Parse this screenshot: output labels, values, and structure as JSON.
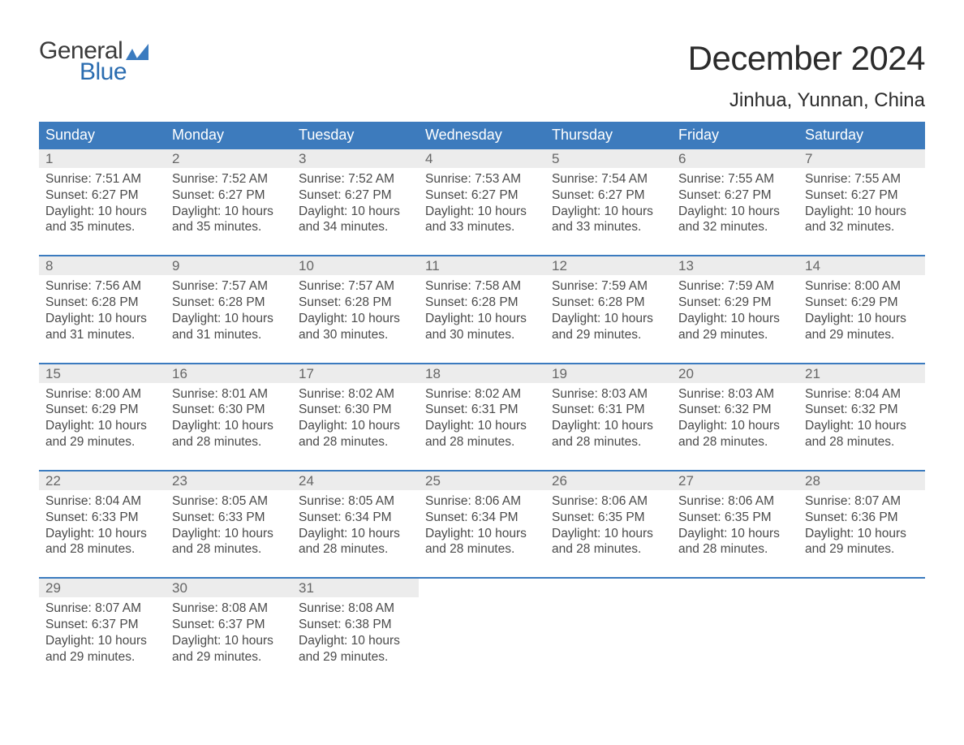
{
  "brand": {
    "line1": "General",
    "line2": "Blue",
    "flag_color": "#3b7bbf"
  },
  "title": "December 2024",
  "location": "Jinhua, Yunnan, China",
  "colors": {
    "header_bg": "#3d7bbd",
    "row_divider": "#3b7bbf",
    "daynum_bg": "#ececec",
    "text": "#333333",
    "background": "#ffffff"
  },
  "typography": {
    "title_fontsize": 42,
    "location_fontsize": 24,
    "dow_fontsize": 18,
    "daynum_fontsize": 17,
    "body_fontsize": 15.5
  },
  "days_of_week": [
    "Sunday",
    "Monday",
    "Tuesday",
    "Wednesday",
    "Thursday",
    "Friday",
    "Saturday"
  ],
  "labels": {
    "sunrise": "Sunrise",
    "sunset": "Sunset",
    "daylight": "Daylight"
  },
  "calendar": {
    "start_weekday_index": 0,
    "days": [
      {
        "n": 1,
        "sunrise": "7:51 AM",
        "sunset": "6:27 PM",
        "daylight": "10 hours and 35 minutes."
      },
      {
        "n": 2,
        "sunrise": "7:52 AM",
        "sunset": "6:27 PM",
        "daylight": "10 hours and 35 minutes."
      },
      {
        "n": 3,
        "sunrise": "7:52 AM",
        "sunset": "6:27 PM",
        "daylight": "10 hours and 34 minutes."
      },
      {
        "n": 4,
        "sunrise": "7:53 AM",
        "sunset": "6:27 PM",
        "daylight": "10 hours and 33 minutes."
      },
      {
        "n": 5,
        "sunrise": "7:54 AM",
        "sunset": "6:27 PM",
        "daylight": "10 hours and 33 minutes."
      },
      {
        "n": 6,
        "sunrise": "7:55 AM",
        "sunset": "6:27 PM",
        "daylight": "10 hours and 32 minutes."
      },
      {
        "n": 7,
        "sunrise": "7:55 AM",
        "sunset": "6:27 PM",
        "daylight": "10 hours and 32 minutes."
      },
      {
        "n": 8,
        "sunrise": "7:56 AM",
        "sunset": "6:28 PM",
        "daylight": "10 hours and 31 minutes."
      },
      {
        "n": 9,
        "sunrise": "7:57 AM",
        "sunset": "6:28 PM",
        "daylight": "10 hours and 31 minutes."
      },
      {
        "n": 10,
        "sunrise": "7:57 AM",
        "sunset": "6:28 PM",
        "daylight": "10 hours and 30 minutes."
      },
      {
        "n": 11,
        "sunrise": "7:58 AM",
        "sunset": "6:28 PM",
        "daylight": "10 hours and 30 minutes."
      },
      {
        "n": 12,
        "sunrise": "7:59 AM",
        "sunset": "6:28 PM",
        "daylight": "10 hours and 29 minutes."
      },
      {
        "n": 13,
        "sunrise": "7:59 AM",
        "sunset": "6:29 PM",
        "daylight": "10 hours and 29 minutes."
      },
      {
        "n": 14,
        "sunrise": "8:00 AM",
        "sunset": "6:29 PM",
        "daylight": "10 hours and 29 minutes."
      },
      {
        "n": 15,
        "sunrise": "8:00 AM",
        "sunset": "6:29 PM",
        "daylight": "10 hours and 29 minutes."
      },
      {
        "n": 16,
        "sunrise": "8:01 AM",
        "sunset": "6:30 PM",
        "daylight": "10 hours and 28 minutes."
      },
      {
        "n": 17,
        "sunrise": "8:02 AM",
        "sunset": "6:30 PM",
        "daylight": "10 hours and 28 minutes."
      },
      {
        "n": 18,
        "sunrise": "8:02 AM",
        "sunset": "6:31 PM",
        "daylight": "10 hours and 28 minutes."
      },
      {
        "n": 19,
        "sunrise": "8:03 AM",
        "sunset": "6:31 PM",
        "daylight": "10 hours and 28 minutes."
      },
      {
        "n": 20,
        "sunrise": "8:03 AM",
        "sunset": "6:32 PM",
        "daylight": "10 hours and 28 minutes."
      },
      {
        "n": 21,
        "sunrise": "8:04 AM",
        "sunset": "6:32 PM",
        "daylight": "10 hours and 28 minutes."
      },
      {
        "n": 22,
        "sunrise": "8:04 AM",
        "sunset": "6:33 PM",
        "daylight": "10 hours and 28 minutes."
      },
      {
        "n": 23,
        "sunrise": "8:05 AM",
        "sunset": "6:33 PM",
        "daylight": "10 hours and 28 minutes."
      },
      {
        "n": 24,
        "sunrise": "8:05 AM",
        "sunset": "6:34 PM",
        "daylight": "10 hours and 28 minutes."
      },
      {
        "n": 25,
        "sunrise": "8:06 AM",
        "sunset": "6:34 PM",
        "daylight": "10 hours and 28 minutes."
      },
      {
        "n": 26,
        "sunrise": "8:06 AM",
        "sunset": "6:35 PM",
        "daylight": "10 hours and 28 minutes."
      },
      {
        "n": 27,
        "sunrise": "8:06 AM",
        "sunset": "6:35 PM",
        "daylight": "10 hours and 28 minutes."
      },
      {
        "n": 28,
        "sunrise": "8:07 AM",
        "sunset": "6:36 PM",
        "daylight": "10 hours and 29 minutes."
      },
      {
        "n": 29,
        "sunrise": "8:07 AM",
        "sunset": "6:37 PM",
        "daylight": "10 hours and 29 minutes."
      },
      {
        "n": 30,
        "sunrise": "8:08 AM",
        "sunset": "6:37 PM",
        "daylight": "10 hours and 29 minutes."
      },
      {
        "n": 31,
        "sunrise": "8:08 AM",
        "sunset": "6:38 PM",
        "daylight": "10 hours and 29 minutes."
      }
    ]
  }
}
